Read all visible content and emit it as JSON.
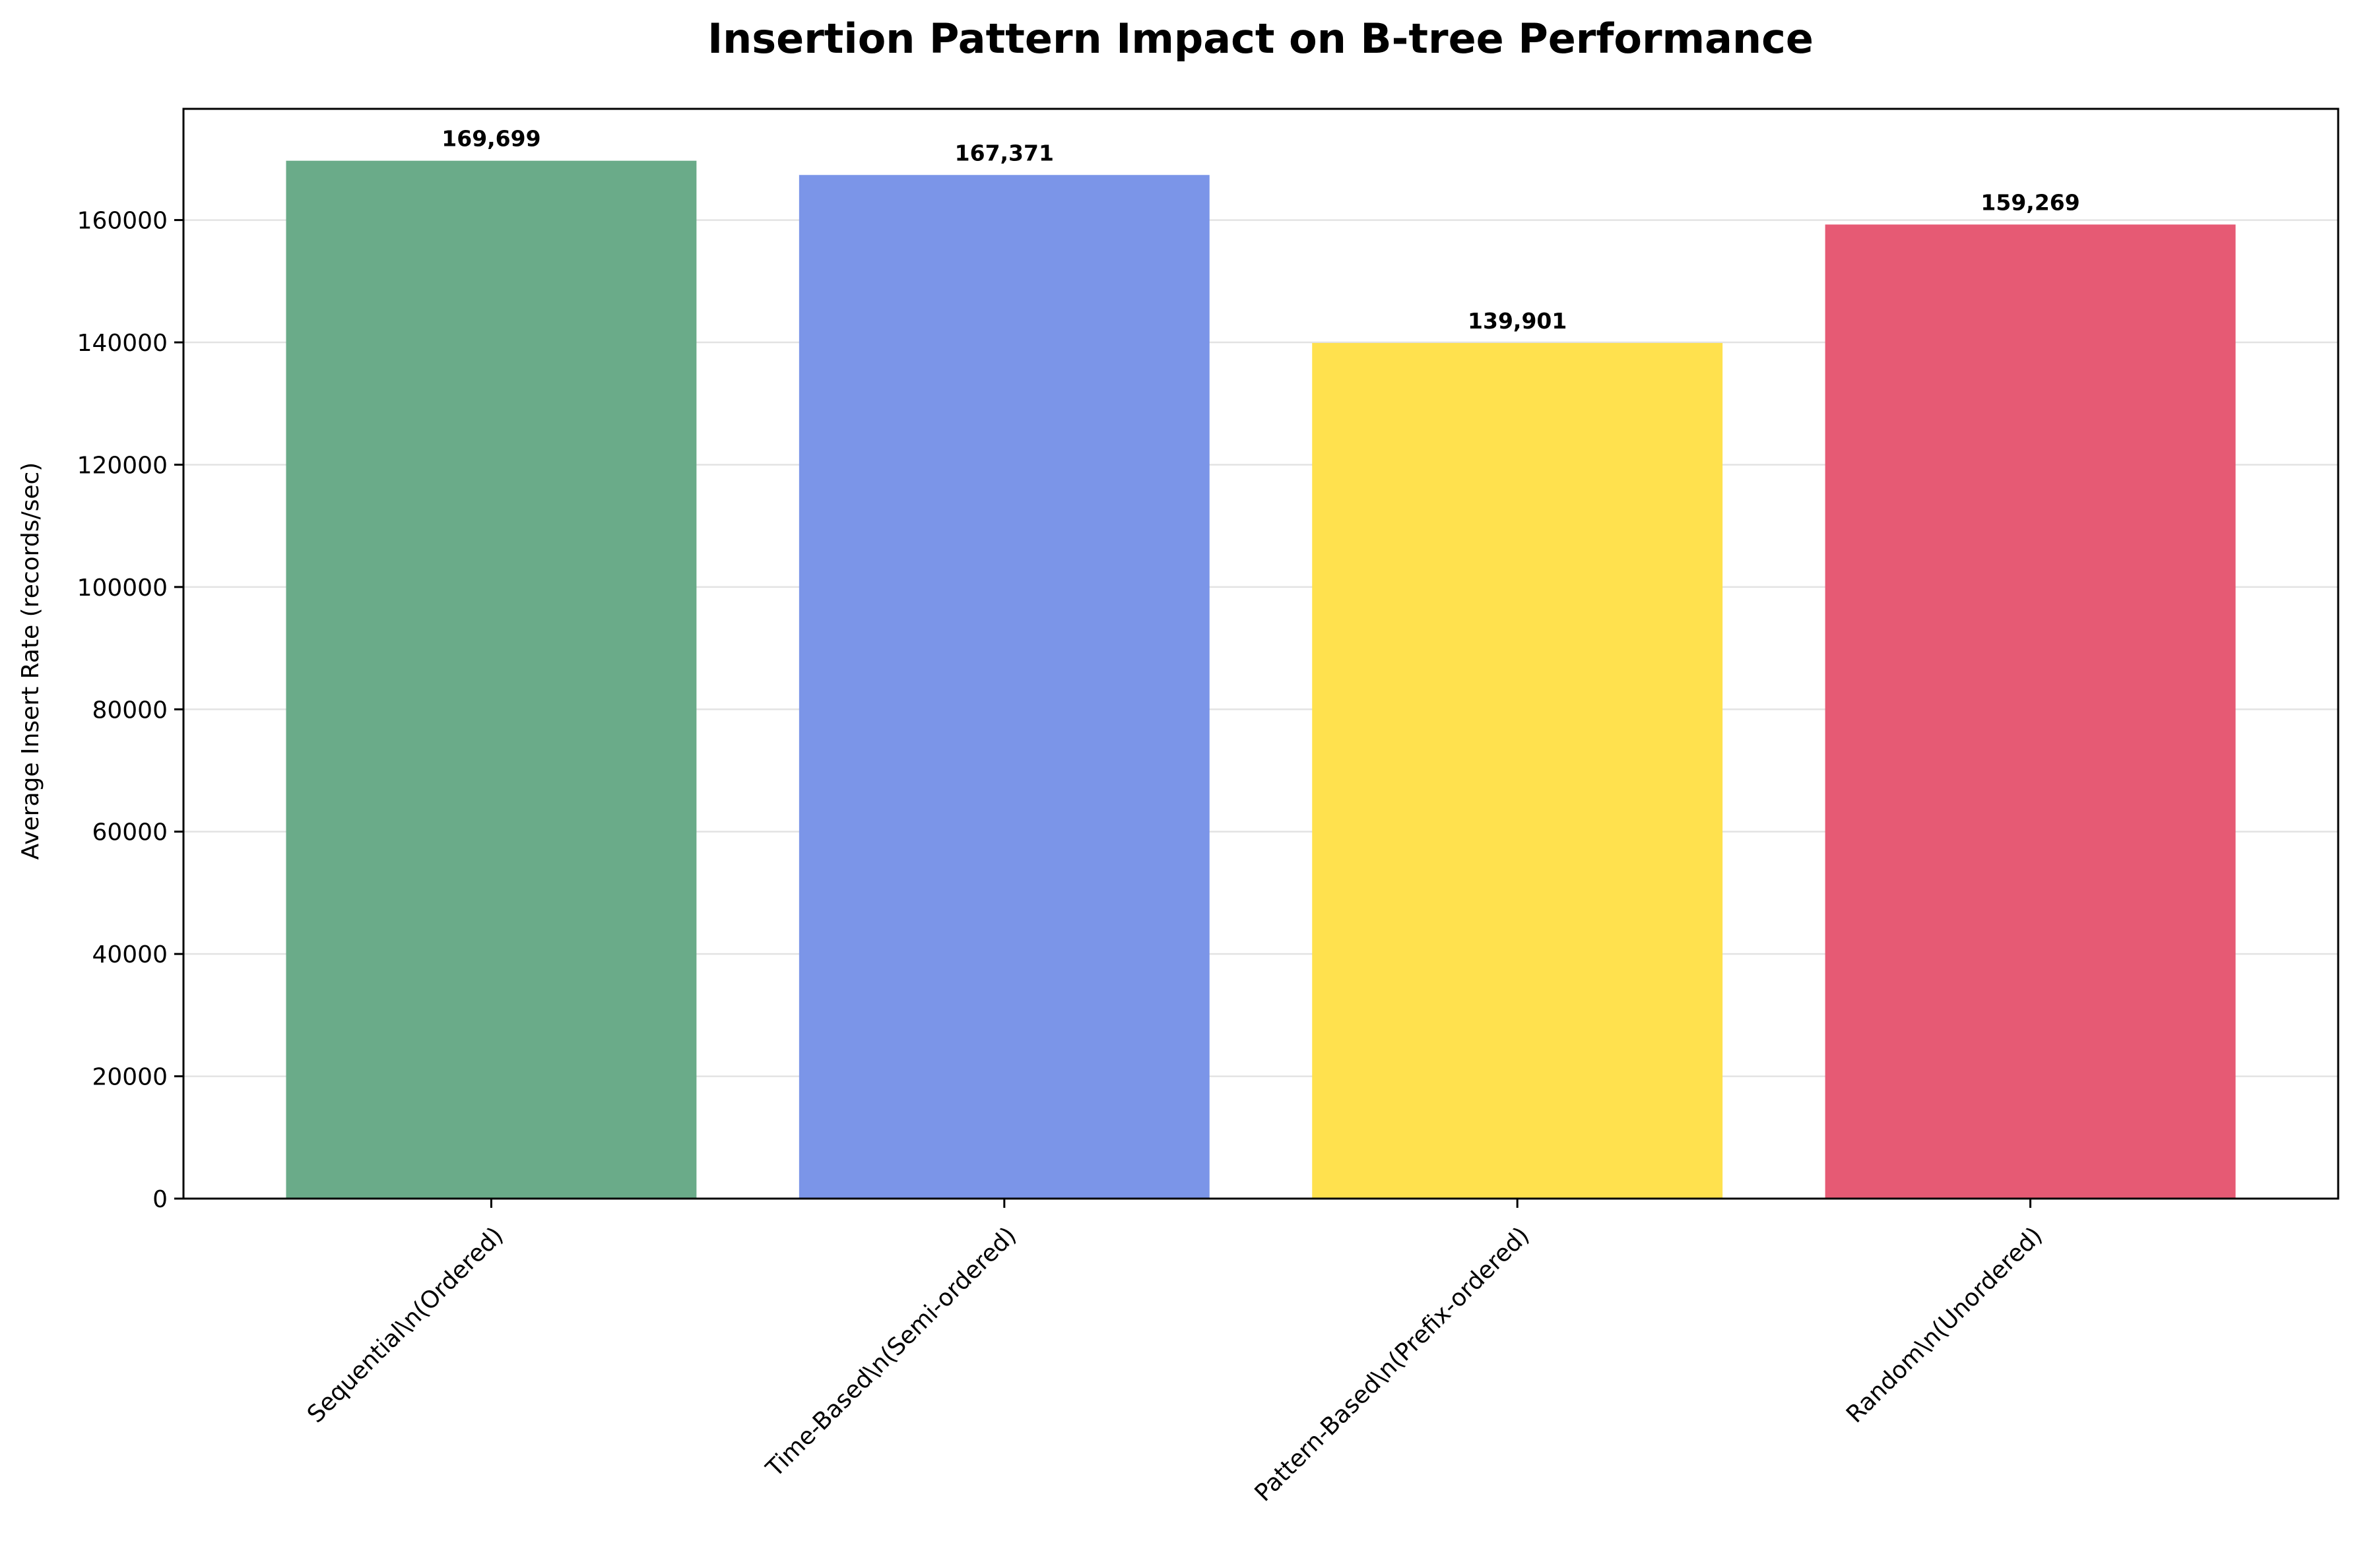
{
  "chart_data": {
    "type": "bar",
    "title": "Insertion Pattern Impact on B-tree Performance",
    "xlabel": "",
    "ylabel": "Average Insert Rate (records/sec)",
    "categories": [
      "Sequential\\n(Ordered)",
      "Time-Based\\n(Semi-ordered)",
      "Pattern-Based\\n(Prefix-ordered)",
      "Random\\n(Unordered)"
    ],
    "values": [
      169699,
      167371,
      139901,
      159269
    ],
    "value_labels": [
      "169,699",
      "167,371",
      "139,901",
      "159,269"
    ],
    "colors": [
      "#6aab89",
      "#7b95e8",
      "#ffe14e",
      "#e65a74"
    ],
    "ylim": [
      0,
      178184
    ],
    "yticks": [
      0,
      20000,
      40000,
      60000,
      80000,
      100000,
      120000,
      140000,
      160000
    ],
    "ytick_labels": [
      "0",
      "20000",
      "40000",
      "60000",
      "80000",
      "100000",
      "120000",
      "140000",
      "160000"
    ],
    "grid": "y",
    "legend": "none",
    "xtick_rotation": 45
  }
}
